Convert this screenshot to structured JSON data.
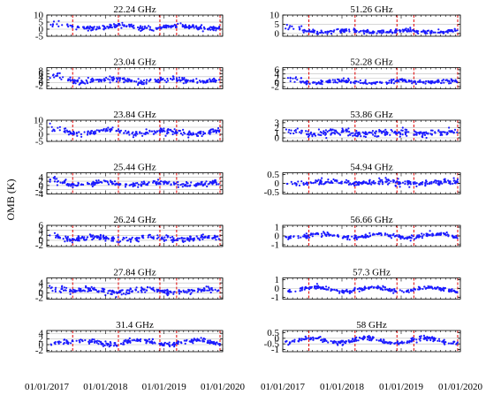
{
  "chart_data": {
    "type": "scatter",
    "ylabel": "OMB (K)",
    "x_date_ticks": [
      "01/01/2017",
      "01/01/2018",
      "01/01/2019",
      "01/01/2020"
    ],
    "marker_color": "#1a1aff",
    "event_line_color": "#e00000",
    "event_lines_fraction": [
      0.147,
      0.407,
      0.643,
      0.738,
      0.985
    ],
    "panels": [
      {
        "title": "22.24 GHz",
        "column": 0,
        "row": 0,
        "ylim": [
          -5,
          10
        ],
        "yticks": [
          -5,
          0,
          5,
          10
        ],
        "grid_y": [
          0,
          5
        ],
        "center": 1.5,
        "amp": 2.0,
        "noise": 1.5,
        "early_boost": 4.0
      },
      {
        "title": "23.04 GHz",
        "column": 0,
        "row": 1,
        "ylim": [
          -4,
          10
        ],
        "yticks": [
          -2,
          0,
          2,
          4,
          6,
          8
        ],
        "grid_y": [
          0,
          4
        ],
        "center": 1.5,
        "amp": 1.5,
        "noise": 1.5,
        "early_boost": 4.0
      },
      {
        "title": "23.84 GHz",
        "column": 0,
        "row": 2,
        "ylim": [
          -5,
          10
        ],
        "yticks": [
          -5,
          0,
          5,
          10
        ],
        "grid_y": [
          0,
          5
        ],
        "center": 1.5,
        "amp": 2.0,
        "noise": 1.7,
        "early_boost": 4.0
      },
      {
        "title": "25.44 GHz",
        "column": 0,
        "row": 3,
        "ylim": [
          -4,
          6
        ],
        "yticks": [
          -4,
          -2,
          0,
          2,
          4
        ],
        "grid_y": [
          -2,
          0,
          2,
          4
        ],
        "center": 0.8,
        "amp": 1.0,
        "noise": 1.0,
        "early_boost": 2.5
      },
      {
        "title": "26.24 GHz",
        "column": 0,
        "row": 4,
        "ylim": [
          -2.5,
          6
        ],
        "yticks": [
          -2,
          0,
          2,
          4,
          6
        ],
        "grid_y": [
          0,
          2,
          4
        ],
        "center": 0.8,
        "amp": 1.0,
        "noise": 1.0,
        "early_boost": 2.5
      },
      {
        "title": "27.84 GHz",
        "column": 0,
        "row": 5,
        "ylim": [
          -2.5,
          6
        ],
        "yticks": [
          -2,
          0,
          2,
          4
        ],
        "grid_y": [
          0,
          2,
          4
        ],
        "center": 0.8,
        "amp": 1.0,
        "noise": 0.9,
        "early_boost": 2.5
      },
      {
        "title": "31.4 GHz",
        "column": 0,
        "row": 6,
        "ylim": [
          -2.5,
          5
        ],
        "yticks": [
          -2,
          0,
          2,
          4
        ],
        "grid_y": [
          0,
          2,
          4
        ],
        "center": 0.8,
        "amp": 1.2,
        "noise": 0.7,
        "early_boost": 1.0
      },
      {
        "title": "51.26 GHz",
        "column": 1,
        "row": 0,
        "ylim": [
          -1.5,
          10
        ],
        "yticks": [
          0,
          5,
          10
        ],
        "grid_y": [
          0,
          5
        ],
        "center": 1.2,
        "amp": 0.8,
        "noise": 0.9,
        "early_boost": 3.0
      },
      {
        "title": "52.28 GHz",
        "column": 1,
        "row": 1,
        "ylim": [
          -3,
          7
        ],
        "yticks": [
          -2,
          0,
          2,
          4,
          6
        ],
        "grid_y": [
          0,
          2,
          4
        ],
        "center": 0.3,
        "amp": 0.7,
        "noise": 0.8,
        "early_boost": 2.0
      },
      {
        "title": "53.86 GHz",
        "column": 1,
        "row": 2,
        "ylim": [
          -0.7,
          3.5
        ],
        "yticks": [
          0,
          1,
          2,
          3
        ],
        "grid_y": [
          0,
          1,
          2
        ],
        "center": 1.0,
        "amp": 0.3,
        "noise": 0.6,
        "early_boost": 0.5
      },
      {
        "title": "54.94 GHz",
        "column": 1,
        "row": 3,
        "ylim": [
          -0.6,
          0.6
        ],
        "yticks": [
          -0.5,
          0,
          0.5
        ],
        "grid_y": [
          0
        ],
        "center": 0.05,
        "amp": 0.08,
        "noise": 0.15,
        "early_boost": 0.0
      },
      {
        "title": "56.66 GHz",
        "column": 1,
        "row": 4,
        "ylim": [
          -1.2,
          1.2
        ],
        "yticks": [
          -1,
          0,
          1
        ],
        "grid_y": [
          0
        ],
        "center": 0.0,
        "amp": 0.35,
        "noise": 0.2,
        "early_boost": 0.0
      },
      {
        "title": "57.3 GHz",
        "column": 1,
        "row": 5,
        "ylim": [
          -1.2,
          1.2
        ],
        "yticks": [
          -1,
          0,
          1
        ],
        "grid_y": [
          0
        ],
        "center": -0.1,
        "amp": 0.4,
        "noise": 0.2,
        "early_boost": 0.0
      },
      {
        "title": "58 GHz",
        "column": 1,
        "row": 6,
        "ylim": [
          -1.2,
          0.7
        ],
        "yticks": [
          -1,
          -0.5,
          0,
          0.5
        ],
        "grid_y": [
          -0.5,
          0
        ],
        "center": -0.2,
        "amp": 0.35,
        "noise": 0.18,
        "early_boost": 0.0
      }
    ]
  }
}
